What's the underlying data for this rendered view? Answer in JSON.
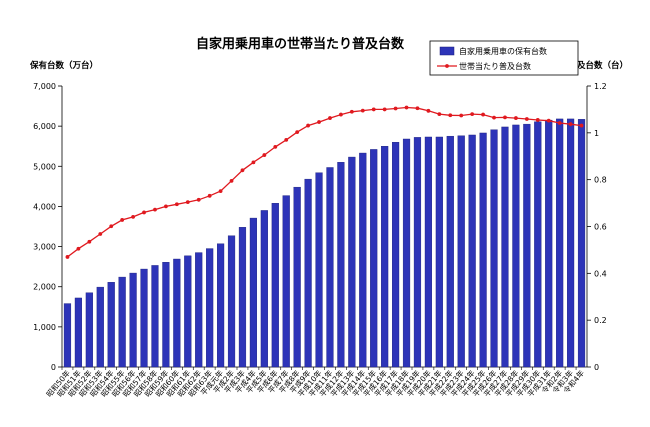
{
  "chart_data": {
    "type": "bar+line",
    "title": "自家用乗用車の世帯当たり普及台数",
    "ylabel_left": "保有台数（万台）",
    "ylabel_right": "普及台数（台）",
    "ylim_left": [
      0,
      7000
    ],
    "yticks_left": [
      "0",
      "1,000",
      "2,000",
      "3,000",
      "4,000",
      "5,000",
      "6,000",
      "7,000"
    ],
    "ylim_right": [
      0,
      1.2
    ],
    "yticks_right": [
      "0",
      "0.2",
      "0.4",
      "0.6",
      "0.8",
      "1",
      "1.2"
    ],
    "grid": false,
    "legend_position": "top-right",
    "categories": [
      "昭和50年",
      "昭和51年",
      "昭和52年",
      "昭和53年",
      "昭和54年",
      "昭和55年",
      "昭和56年",
      "昭和57年",
      "昭和58年",
      "昭和59年",
      "昭和60年",
      "昭和61年",
      "昭和62年",
      "昭和63年",
      "平成元年",
      "平成2年",
      "平成3年",
      "平成4年",
      "平成5年",
      "平成6年",
      "平成7年",
      "平成8年",
      "平成9年",
      "平成10年",
      "平成11年",
      "平成12年",
      "平成13年",
      "平成14年",
      "平成15年",
      "平成16年",
      "平成17年",
      "平成18年",
      "平成19年",
      "平成20年",
      "平成21年",
      "平成22年",
      "平成23年",
      "平成24年",
      "平成25年",
      "平成26年",
      "平成27年",
      "平成28年",
      "平成29年",
      "平成30年",
      "平成31年",
      "令和2年",
      "令和3年",
      "令和4年"
    ],
    "series": [
      {
        "name": "自家用乗用車の保有台数",
        "kind": "bar",
        "axis": "left",
        "color": "#2d34b8",
        "values": [
          1580,
          1720,
          1850,
          1990,
          2110,
          2240,
          2340,
          2440,
          2530,
          2610,
          2690,
          2770,
          2850,
          2950,
          3070,
          3270,
          3480,
          3710,
          3900,
          4080,
          4270,
          4480,
          4680,
          4840,
          4970,
          5100,
          5230,
          5330,
          5420,
          5500,
          5600,
          5680,
          5720,
          5730,
          5730,
          5750,
          5760,
          5780,
          5830,
          5910,
          5980,
          6030,
          6050,
          6110,
          6150,
          6180,
          6180,
          6170
        ]
      },
      {
        "name": "世帯当たり普及台数",
        "kind": "line",
        "axis": "right",
        "color": "#e0191f",
        "values": [
          0.47,
          0.505,
          0.535,
          0.568,
          0.601,
          0.628,
          0.641,
          0.66,
          0.672,
          0.686,
          0.695,
          0.704,
          0.714,
          0.731,
          0.751,
          0.795,
          0.84,
          0.874,
          0.905,
          0.94,
          0.97,
          1.003,
          1.031,
          1.046,
          1.063,
          1.078,
          1.09,
          1.095,
          1.1,
          1.1,
          1.104,
          1.108,
          1.105,
          1.094,
          1.08,
          1.075,
          1.074,
          1.08,
          1.078,
          1.065,
          1.066,
          1.063,
          1.059,
          1.055,
          1.052,
          1.042,
          1.037,
          1.031
        ]
      }
    ]
  }
}
